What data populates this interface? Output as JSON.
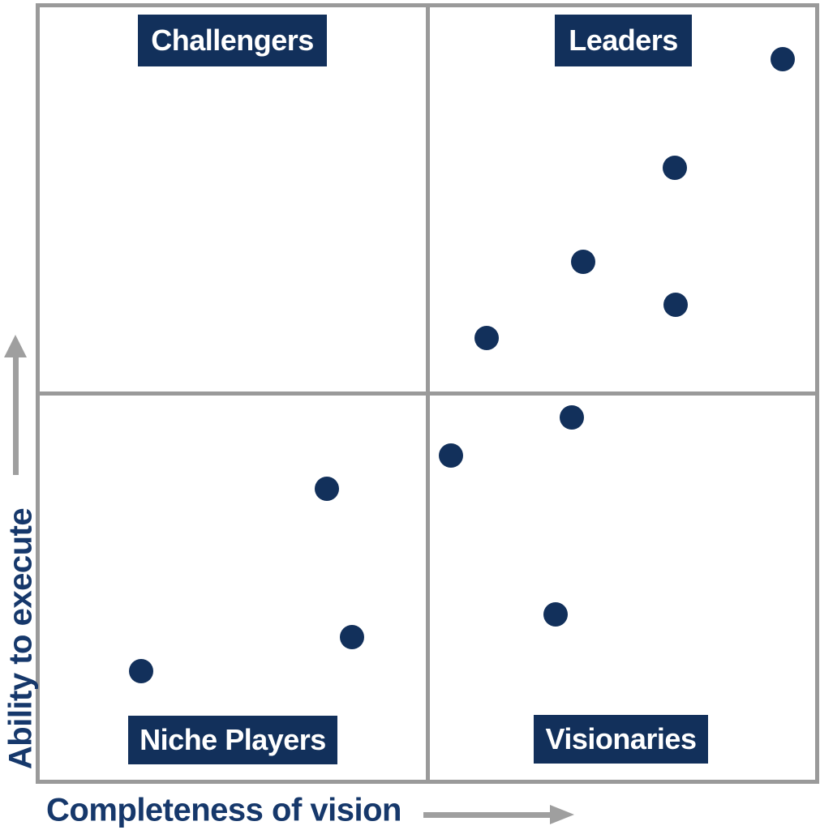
{
  "figure": {
    "kind": "gartner-magic-quadrant",
    "background_color": "#ffffff",
    "grid_color": "#9a9a9a",
    "plate_color": "#12305b",
    "plate_text_color": "#ffffff",
    "axis_label_color": "#16386b",
    "arrow_color": "#9f9f9f"
  },
  "axes": {
    "y_label": "Ability to execute",
    "x_label": "Completeness of vision"
  },
  "quadrants": {
    "top_left": "Challengers",
    "top_right": "Leaders",
    "bottom_left": "Niche Players",
    "bottom_right": "Visionaries"
  },
  "chart_data": {
    "type": "scatter",
    "title": "Magic Quadrant (2x2)",
    "xlabel": "Completeness of vision",
    "ylabel": "Ability to execute",
    "xlim": [
      0,
      100
    ],
    "ylim": [
      0,
      100
    ],
    "grid": "2x2 quadrant dividers at x=50, y=50",
    "legend_position": "none",
    "quadrant_labels": [
      "Challengers",
      "Leaders",
      "Niche Players",
      "Visionaries"
    ],
    "point_color": "#12305b",
    "point_radius_px": 15,
    "points": [
      {
        "vision": 95.8,
        "execute": 93.3,
        "quadrant": "Leaders"
      },
      {
        "vision": 81.9,
        "execute": 79.2,
        "quadrant": "Leaders"
      },
      {
        "vision": 70.1,
        "execute": 67.0,
        "quadrant": "Leaders"
      },
      {
        "vision": 82.0,
        "execute": 61.5,
        "quadrant": "Leaders"
      },
      {
        "vision": 57.6,
        "execute": 57.2,
        "quadrant": "Leaders"
      },
      {
        "vision": 68.6,
        "execute": 46.9,
        "quadrant": "Visionaries"
      },
      {
        "vision": 53.0,
        "execute": 42.0,
        "quadrant": "Visionaries"
      },
      {
        "vision": 66.5,
        "execute": 21.4,
        "quadrant": "Visionaries"
      },
      {
        "vision": 37.0,
        "execute": 37.7,
        "quadrant": "Niche Players"
      },
      {
        "vision": 40.3,
        "execute": 18.5,
        "quadrant": "Niche Players"
      },
      {
        "vision": 13.1,
        "execute": 14.1,
        "quadrant": "Niche Players"
      }
    ]
  }
}
